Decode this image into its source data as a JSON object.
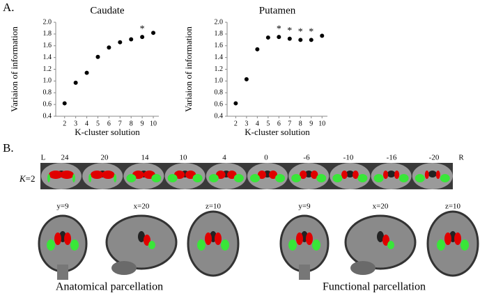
{
  "panel_a_label": "A.",
  "chart_data": [
    {
      "type": "scatter",
      "title": "Caudate",
      "x_label": "K-cluster solution",
      "y_label": "Variaion of information",
      "x": [
        2,
        3,
        4,
        5,
        6,
        7,
        8,
        9,
        10
      ],
      "values": [
        0.62,
        0.97,
        1.14,
        1.41,
        1.57,
        1.66,
        1.71,
        1.75,
        1.82
      ],
      "color": "#000000",
      "xlim": [
        1.2,
        10.5
      ],
      "xticks": [
        2,
        3,
        4,
        5,
        6,
        7,
        8,
        9,
        10
      ],
      "ylim": [
        0.4,
        2.0
      ],
      "yticks": [
        0.4,
        0.6,
        0.8,
        {
          "value": 1,
          "label": "1.0"
        },
        1.2,
        1.4,
        1.6,
        1.8,
        {
          "value": 2,
          "label": "2.0"
        }
      ],
      "annotations": [
        {
          "x": 9,
          "text": "*"
        }
      ]
    },
    {
      "type": "scatter",
      "title": "Putamen",
      "x_label": "K-cluster solution",
      "y_label": "Variaion of information",
      "x": [
        2,
        3,
        4,
        5,
        6,
        7,
        8,
        9,
        10
      ],
      "values": [
        0.62,
        1.03,
        1.54,
        1.74,
        1.75,
        1.72,
        1.7,
        1.7,
        1.77
      ],
      "color": "#000000",
      "xlim": [
        1.2,
        10.5
      ],
      "xticks": [
        2,
        3,
        4,
        5,
        6,
        7,
        8,
        9,
        10
      ],
      "ylim": [
        0.4,
        2.0
      ],
      "yticks": [
        0.4,
        0.6,
        0.8,
        {
          "value": 1,
          "label": "1.0"
        },
        1.2,
        1.4,
        1.6,
        1.8,
        {
          "value": 2,
          "label": "2.0"
        }
      ],
      "annotations": [
        {
          "x": 6,
          "text": "*"
        },
        {
          "x": 7,
          "text": "*"
        },
        {
          "x": 8,
          "text": "*"
        },
        {
          "x": 9,
          "text": "*"
        }
      ]
    }
  ],
  "panel_b": {
    "label": "B.",
    "k_label": "K",
    "k_value": "=2",
    "slice_labels": [
      "L",
      "24",
      "20",
      "14",
      "10",
      "4",
      "0",
      "-6",
      "-10",
      "-16",
      "-20",
      "R"
    ],
    "groups": [
      {
        "caption": "Anatomical parcellation",
        "views": [
          "y=9",
          "x=20",
          "z=10"
        ]
      },
      {
        "caption": "Functional parcellation",
        "views": [
          "y=9",
          "x=20",
          "z=10"
        ]
      }
    ]
  }
}
